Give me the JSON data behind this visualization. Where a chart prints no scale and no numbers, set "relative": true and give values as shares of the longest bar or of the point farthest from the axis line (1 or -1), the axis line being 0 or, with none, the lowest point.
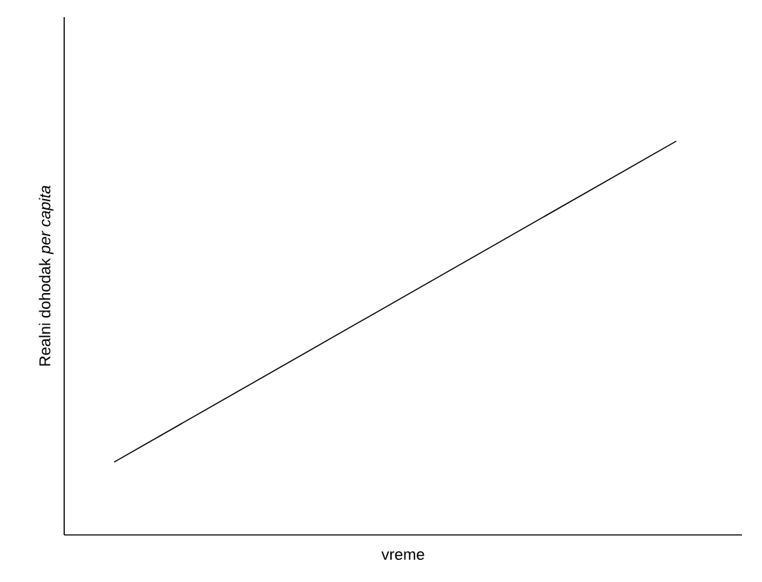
{
  "chart_data": {
    "type": "line",
    "relative": true,
    "xlabel": "vreme",
    "ylabel": "Realni dohodak *per capita*",
    "categories": [
      null,
      null
    ],
    "series": [
      {
        "color": "#000000",
        "values": [
          0.185,
          1
        ]
      }
    ]
  }
}
